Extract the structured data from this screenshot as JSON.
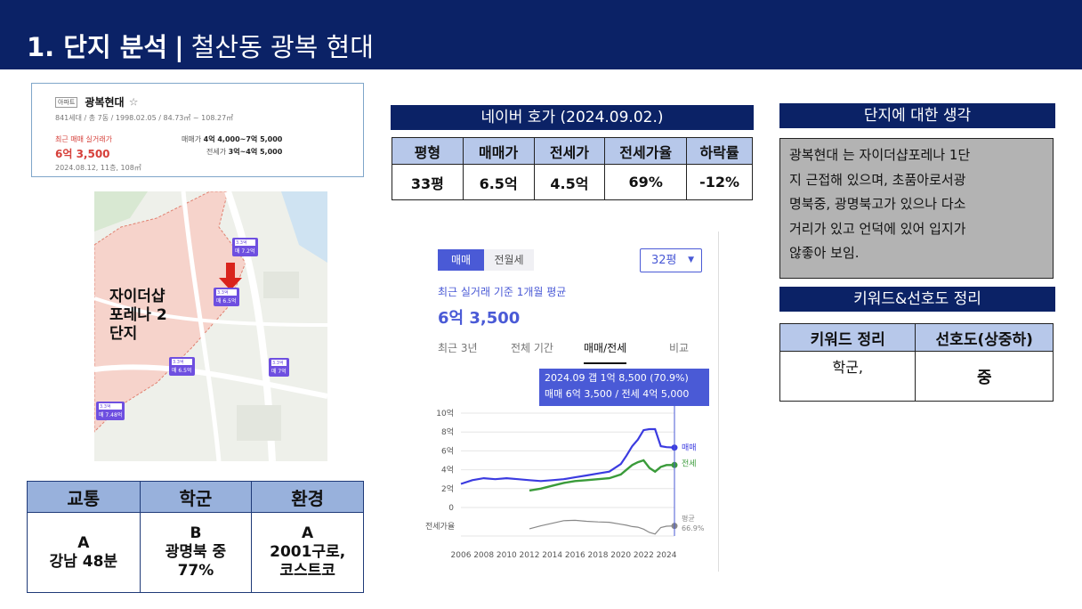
{
  "header": {
    "title_num": "1. 단지 분석",
    "title_sep": "|",
    "title_text": "철산동 광복 현대"
  },
  "listing": {
    "badge": "아파트",
    "name": "광복현대",
    "star": "☆",
    "meta": "841세대 / 총 7동 / 1998.02.05 / 84.73㎡ ~ 108.27㎡",
    "recent_label": "최근 매매 실거래가",
    "recent_price": "6억 3,500",
    "recent_date": "2024.08.12, 11층, 108㎡",
    "sale_label": "매매가",
    "sale_range": "4억 4,000~7억 5,000",
    "jeonse_label": "전세가",
    "jeonse_range": "3억~4억 5,000"
  },
  "map": {
    "complex_label": "자이더샵 포레나 2단지",
    "pins": [
      {
        "area": "3.3억",
        "price": "매 7.2억"
      },
      {
        "area": "3.3억",
        "price": "매 6.5억"
      },
      {
        "area": "3.3억",
        "price": "매 6.5억"
      },
      {
        "area": "3.3억",
        "price": "매 7억"
      },
      {
        "area": "3.3억",
        "price": "매 7.48억"
      }
    ]
  },
  "rating_table": {
    "headers": [
      "교통",
      "학군",
      "환경"
    ],
    "cells": [
      [
        "A",
        "강남 48분"
      ],
      [
        "B",
        "광명북 중",
        "77%"
      ],
      [
        "A",
        "2001구로,",
        "코스트코"
      ]
    ]
  },
  "naver": {
    "title": "네이버 호가 (2024.09.02.)",
    "headers": [
      "평형",
      "매매가",
      "전세가",
      "전세가율",
      "하락률"
    ],
    "row": [
      "33평",
      "6.5억",
      "4.5억",
      "69%",
      "-12%"
    ]
  },
  "chart_panel": {
    "tab_active": "매매",
    "tab_inactive": "전월세",
    "size_select": "32평",
    "avg_label": "최근 실거래 기준 1개월 평균",
    "avg_price": "6억 3,500",
    "period_tabs": [
      "최근 3년",
      "전체 기간",
      "매매/전세",
      "비교"
    ],
    "tooltip_line1": "2024.09  갭 1억 8,500 (70.9%)",
    "tooltip_line2": "매매 6억 3,500 / 전세 4억 5,000",
    "series_label_sale": "매매",
    "series_label_jeonse": "전세",
    "ratio_label": "전세가율",
    "ratio_avg_label": "평균",
    "ratio_avg_value": "66.9%"
  },
  "chart_data": {
    "type": "line",
    "xlabel": "",
    "ylabel": "",
    "x_ticks": [
      "2006",
      "2008",
      "2010",
      "2012",
      "2014",
      "2016",
      "2018",
      "2020",
      "2022",
      "2024"
    ],
    "y_ticks": [
      "10억",
      "8억",
      "6억",
      "4억",
      "2억",
      "0"
    ],
    "ylim": [
      0,
      10
    ],
    "x": [
      2006,
      2007,
      2008,
      2009,
      2010,
      2011,
      2012,
      2013,
      2014,
      2015,
      2016,
      2017,
      2018,
      2019,
      2020,
      2020.5,
      2021,
      2021.5,
      2022,
      2022.5,
      2023,
      2023.5,
      2024,
      2024.7
    ],
    "series": [
      {
        "name": "매매",
        "values": [
          2.5,
          2.9,
          3.1,
          3.0,
          3.1,
          3.0,
          2.9,
          2.8,
          2.9,
          3.0,
          3.2,
          3.4,
          3.6,
          3.8,
          4.6,
          5.5,
          6.5,
          7.2,
          8.2,
          8.3,
          8.3,
          6.5,
          6.4,
          6.35
        ]
      },
      {
        "name": "전세",
        "values": [
          null,
          null,
          null,
          null,
          null,
          null,
          1.8,
          2.0,
          2.3,
          2.6,
          2.8,
          2.9,
          3.0,
          3.1,
          3.5,
          4.0,
          4.5,
          4.8,
          5.0,
          4.2,
          3.8,
          4.3,
          4.5,
          4.5
        ]
      },
      {
        "name": "전세가율",
        "values": [
          null,
          null,
          null,
          null,
          null,
          null,
          62,
          71,
          79,
          87,
          88,
          85,
          83,
          82,
          76,
          73,
          69,
          67,
          61,
          51,
          46,
          66,
          70,
          70.9
        ]
      }
    ],
    "grid": true,
    "legend": "inline-right"
  },
  "think": {
    "title": "단지에 대한 생각",
    "lines": [
      "광복현대 는 자이더샵포레나 1단",
      "지 근접해 있으며, 초품아로서광",
      "명북중, 광명북고가 있으나 다소",
      "거리가 있고  언덕에 있어 입지가",
      "않좋아 보임."
    ]
  },
  "keywords": {
    "title": "키워드&선호도 정리",
    "headers": [
      "키워드 정리",
      "선호도(상중하)"
    ],
    "keyword": "학군,",
    "preference": "중"
  }
}
